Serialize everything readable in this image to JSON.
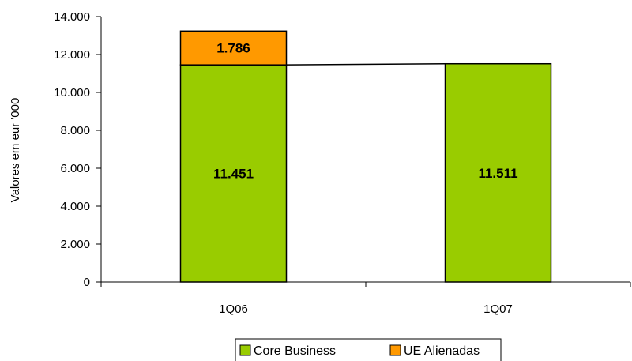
{
  "chart_data": {
    "type": "bar",
    "stacked": true,
    "categories": [
      "1Q06",
      "1Q07"
    ],
    "series": [
      {
        "name": "Core Business",
        "values": [
          11451,
          11511
        ],
        "color": "#99CC00",
        "labels": [
          "11.451",
          "11.511"
        ]
      },
      {
        "name": "UE Alienadas",
        "values": [
          1786,
          0
        ],
        "color": "#FF9900",
        "labels": [
          "1.786",
          ""
        ]
      }
    ],
    "ylabel": "Valores em eur '000",
    "ylim": [
      0,
      14000
    ],
    "yticks": [
      0,
      2000,
      4000,
      6000,
      8000,
      10000,
      12000,
      14000
    ],
    "ytick_labels": [
      "0",
      "2.000",
      "4.000",
      "6.000",
      "8.000",
      "10.000",
      "12.000",
      "14.000"
    ],
    "connector_line": true,
    "grid": false,
    "legend_position": "bottom"
  }
}
